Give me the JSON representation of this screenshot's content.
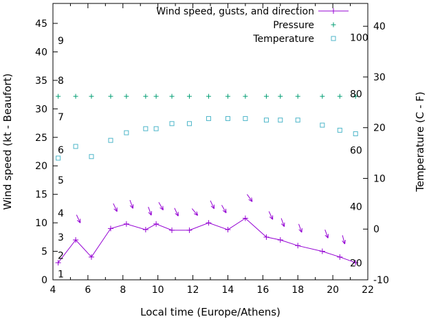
{
  "chart_data": {
    "type": "line",
    "title": "",
    "x": [
      4.3,
      5.3,
      6.2,
      7.3,
      8.2,
      9.3,
      9.9,
      10.8,
      11.8,
      12.9,
      14.0,
      15.0,
      16.2,
      17.0,
      18.0,
      19.4,
      20.4,
      21.3
    ],
    "series": [
      {
        "name": "Wind speed, gusts, and direction",
        "axis": "left",
        "unit": "kt",
        "style": "linespoints",
        "marker": "plus",
        "color": "#9400d3",
        "values": [
          3,
          7,
          4,
          9,
          9.8,
          8.8,
          9.8,
          8.7,
          8.7,
          10,
          8.8,
          10.8,
          7.5,
          7,
          6,
          5,
          4,
          3
        ]
      },
      {
        "name": "Pressure",
        "axis": "left",
        "style": "points",
        "marker": "plus",
        "color": "#009e73",
        "values": [
          32.2,
          32.2,
          32.2,
          32.2,
          32.2,
          32.2,
          32.2,
          32.2,
          32.2,
          32.2,
          32.2,
          32.2,
          32.2,
          32.2,
          32.2,
          32.2,
          32.2,
          32.2
        ]
      },
      {
        "name": "Temperature",
        "axis": "right",
        "unit": "C",
        "style": "points",
        "marker": "open-square",
        "color": "#4db6c9",
        "values": [
          14,
          16.3,
          14.3,
          17.5,
          19,
          19.8,
          19.8,
          20.8,
          20.8,
          21.8,
          21.8,
          21.8,
          21.5,
          21.5,
          21.5,
          20.5,
          19.5,
          18.8
        ]
      }
    ],
    "wind_direction_arrows": [
      {
        "x": 5.35,
        "y_kt": 11.4,
        "angle_deg": 65
      },
      {
        "x": 7.45,
        "y_kt": 13.4,
        "angle_deg": 65
      },
      {
        "x": 8.4,
        "y_kt": 14.0,
        "angle_deg": 70
      },
      {
        "x": 9.45,
        "y_kt": 12.8,
        "angle_deg": 70
      },
      {
        "x": 10.05,
        "y_kt": 13.6,
        "angle_deg": 60
      },
      {
        "x": 10.95,
        "y_kt": 12.6,
        "angle_deg": 65
      },
      {
        "x": 11.95,
        "y_kt": 12.5,
        "angle_deg": 50
      },
      {
        "x": 13.0,
        "y_kt": 13.9,
        "angle_deg": 65
      },
      {
        "x": 13.65,
        "y_kt": 13.1,
        "angle_deg": 60
      },
      {
        "x": 15.1,
        "y_kt": 15.0,
        "angle_deg": 55
      },
      {
        "x": 16.35,
        "y_kt": 12.0,
        "angle_deg": 65
      },
      {
        "x": 17.05,
        "y_kt": 10.8,
        "angle_deg": 70
      },
      {
        "x": 18.05,
        "y_kt": 9.8,
        "angle_deg": 70
      },
      {
        "x": 19.55,
        "y_kt": 8.8,
        "angle_deg": 70
      },
      {
        "x": 20.55,
        "y_kt": 7.8,
        "angle_deg": 75
      }
    ],
    "x_axis": {
      "label": "Local time (Europe/Athens)",
      "min": 4,
      "max": 22,
      "major_ticks": [
        4,
        6,
        8,
        10,
        12,
        14,
        16,
        18,
        20,
        22
      ],
      "minor_tick_interval": 1
    },
    "y_axis_left": {
      "label": "Wind speed (kt - Beaufort)",
      "min": 0,
      "max": 48.5,
      "major_ticks": [
        0,
        5,
        10,
        15,
        20,
        25,
        30,
        35,
        40,
        45
      ]
    },
    "y_axis_right": {
      "label": "Temperature (C - F)",
      "min": -10,
      "max": 44.5,
      "major_ticks": [
        -10,
        0,
        10,
        20,
        30,
        40
      ]
    },
    "beaufort_scale_labels": [
      {
        "text": "1",
        "kt": 1
      },
      {
        "text": "2",
        "kt": 4.3
      },
      {
        "text": "3",
        "kt": 7.5
      },
      {
        "text": "4",
        "kt": 11.7
      },
      {
        "text": "5",
        "kt": 17.5
      },
      {
        "text": "6",
        "kt": 22.8
      },
      {
        "text": "7",
        "kt": 28.6
      },
      {
        "text": "8",
        "kt": 35
      },
      {
        "text": "9",
        "kt": 42
      }
    ],
    "fahrenheit_scale_labels": [
      {
        "text": "20",
        "f": 20
      },
      {
        "text": "40",
        "f": 40
      },
      {
        "text": "60",
        "f": 60
      },
      {
        "text": "80",
        "f": 80
      },
      {
        "text": "100",
        "f": 100
      }
    ],
    "legend_position": "top-right-inside",
    "grid": false,
    "background": "#ffffff",
    "axis_color": "#000000"
  }
}
